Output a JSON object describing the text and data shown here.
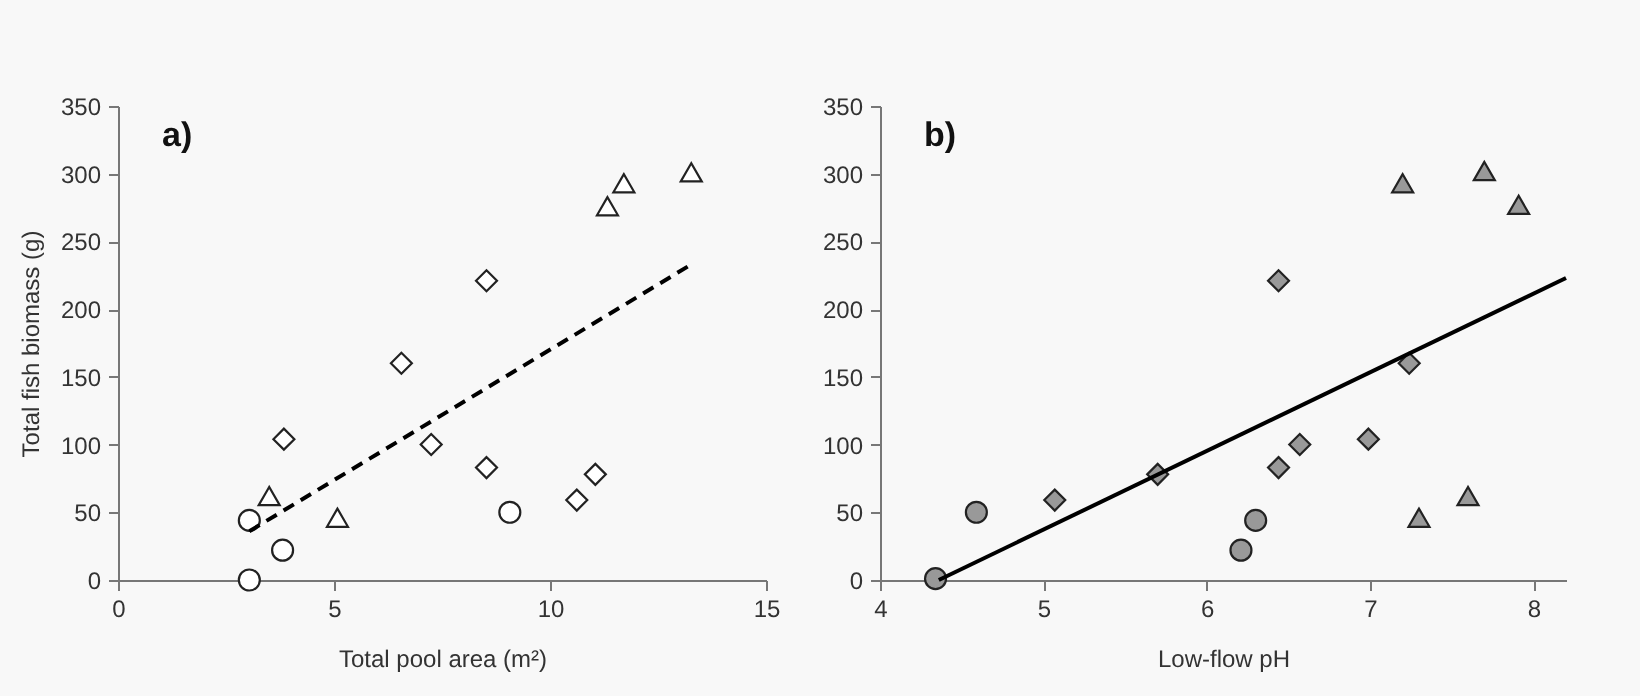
{
  "chart_data": [
    {
      "type": "scatter",
      "title": "a)",
      "xlabel": "Total pool area (m²)",
      "ylabel": "Total fish biomass (g)",
      "xlim": [
        0,
        15
      ],
      "xticks": [
        0,
        5,
        10,
        15
      ],
      "ylim": [
        0,
        350
      ],
      "yticks": [
        0,
        50,
        100,
        150,
        200,
        250,
        300,
        350
      ],
      "grid": false,
      "series": [
        {
          "marker": "circle",
          "color": "#ffffff",
          "x": [
            3.04,
            3.04,
            3.81,
            9.07
          ],
          "values": [
            0,
            44,
            22,
            50
          ]
        },
        {
          "marker": "diamond",
          "color": "#ffffff",
          "x": [
            3.84,
            6.56,
            7.25,
            8.53,
            8.53,
            10.62,
            11.05
          ],
          "values": [
            104,
            160,
            100,
            221,
            83,
            59,
            78
          ]
        },
        {
          "marker": "triangle",
          "color": "#ffffff",
          "x": [
            3.5,
            5.08,
            11.33,
            11.71,
            13.27
          ],
          "values": [
            62,
            46,
            276,
            293,
            301
          ]
        },
        {
          "type": "line",
          "line_style": "dashed",
          "color": "#000000",
          "x": [
            3.04,
            13.27
          ],
          "values": [
            36,
            233
          ]
        }
      ]
    },
    {
      "type": "scatter",
      "title": "b)",
      "xlabel": "Low-flow pH",
      "xlim": [
        4,
        8.2
      ],
      "xticks": [
        4,
        5,
        6,
        7,
        8
      ],
      "ylim": [
        0,
        350
      ],
      "yticks": [
        0,
        50,
        100,
        150,
        200,
        250,
        300,
        350
      ],
      "grid": false,
      "series": [
        {
          "marker": "circle",
          "color": "#999999",
          "x": [
            4.34,
            4.59,
            6.21,
            6.3
          ],
          "values": [
            1,
            50,
            22,
            44
          ]
        },
        {
          "marker": "diamond",
          "color": "#999999",
          "x": [
            5.07,
            5.7,
            6.44,
            6.44,
            6.57,
            6.99,
            7.24
          ],
          "values": [
            59,
            78,
            221,
            83,
            100,
            104,
            160
          ]
        },
        {
          "marker": "triangle",
          "color": "#999999",
          "x": [
            7.2,
            7.7,
            7.91,
            7.3,
            7.6
          ],
          "values": [
            293,
            302,
            277,
            46,
            62
          ]
        },
        {
          "type": "line",
          "line_style": "solid",
          "color": "#000000",
          "x": [
            4.36,
            8.2
          ],
          "values": [
            0,
            223
          ]
        }
      ]
    }
  ]
}
